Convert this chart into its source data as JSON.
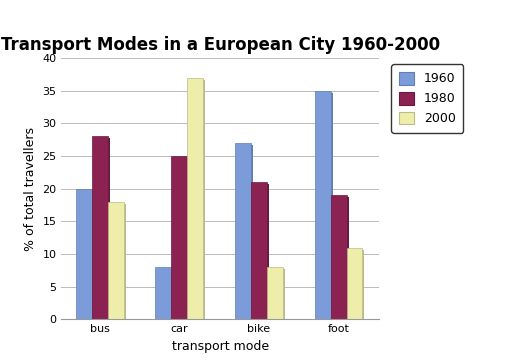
{
  "title": "Transport Modes in a European City 1960-2000",
  "categories": [
    "bus",
    "car",
    "bike",
    "foot"
  ],
  "years": [
    "1960",
    "1980",
    "2000"
  ],
  "values": {
    "1960": [
      20,
      8,
      27,
      35
    ],
    "1980": [
      28,
      25,
      21,
      19
    ],
    "2000": [
      18,
      37,
      8,
      11
    ]
  },
  "bar_colors": {
    "1960": "#7b9cd9",
    "1980": "#8b2252",
    "2000": "#eeeeaa"
  },
  "shadow_colors": {
    "1960": "#6080b0",
    "1980": "#6a1a40",
    "2000": "#bbbb88"
  },
  "xlabel": "transport mode",
  "ylabel": "% of total travellers",
  "ylim": [
    0,
    40
  ],
  "yticks": [
    0,
    5,
    10,
    15,
    20,
    25,
    30,
    35,
    40
  ],
  "title_fontsize": 12,
  "axis_label_fontsize": 9,
  "tick_fontsize": 8,
  "legend_fontsize": 9,
  "bar_width": 0.2,
  "grid": true,
  "background_color": "#ffffff",
  "plot_background_color": "#ffffff"
}
